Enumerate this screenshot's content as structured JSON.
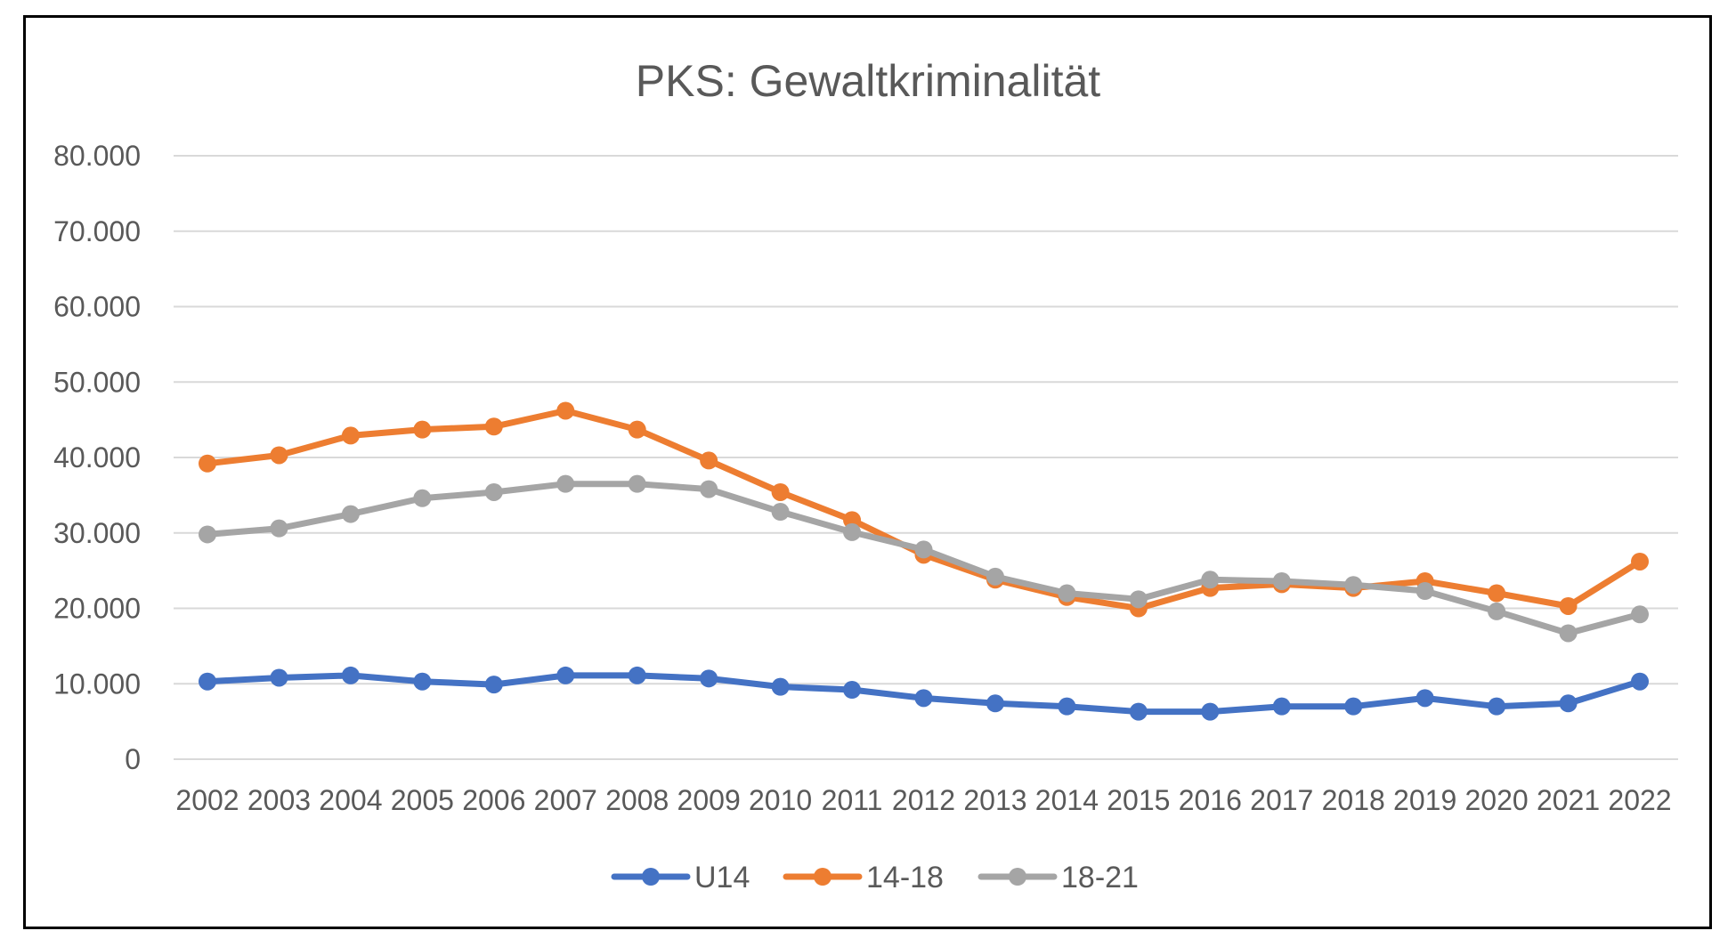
{
  "chart_data": {
    "type": "line",
    "title": "PKS: Gewaltkriminalität",
    "xlabel": "",
    "ylabel": "",
    "categories": [
      "2002",
      "2003",
      "2004",
      "2005",
      "2006",
      "2007",
      "2008",
      "2009",
      "2010",
      "2011",
      "2012",
      "2013",
      "2014",
      "2015",
      "2016",
      "2017",
      "2018",
      "2019",
      "2020",
      "2021",
      "2022"
    ],
    "ylim": [
      0,
      80000
    ],
    "yticks": [
      0,
      10000,
      20000,
      30000,
      40000,
      50000,
      60000,
      70000,
      80000
    ],
    "ytick_labels": [
      "0",
      "10.000",
      "20.000",
      "30.000",
      "40.000",
      "50.000",
      "60.000",
      "70.000",
      "80.000"
    ],
    "grid": true,
    "legend_position": "bottom",
    "series": [
      {
        "name": "U14",
        "color": "#4472C4",
        "values": [
          10300,
          10800,
          11100,
          10300,
          9900,
          11100,
          11100,
          10700,
          9600,
          9200,
          8100,
          7400,
          7000,
          6300,
          6300,
          7000,
          7000,
          8100,
          7000,
          7400,
          10300
        ]
      },
      {
        "name": "14-18",
        "color": "#ED7D31",
        "values": [
          39200,
          40300,
          42900,
          43700,
          44100,
          46200,
          43700,
          39600,
          35400,
          31700,
          27100,
          23800,
          21500,
          20000,
          22700,
          23200,
          22700,
          23600,
          22000,
          20300,
          26200
        ]
      },
      {
        "name": "18-21",
        "color": "#A5A5A5",
        "values": [
          29800,
          30600,
          32500,
          34600,
          35400,
          36500,
          36500,
          35800,
          32800,
          30100,
          27800,
          24200,
          22000,
          21200,
          23800,
          23600,
          23100,
          22300,
          19600,
          16700,
          19200
        ]
      }
    ]
  }
}
